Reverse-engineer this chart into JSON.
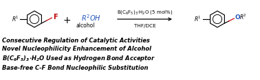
{
  "bg_color": "#ffffff",
  "fig_width": 3.78,
  "fig_height": 1.17,
  "dpi": 100,
  "reaction_line1": "Consecutive Regulation of Catalytic Activities",
  "reaction_line2": "Novel Nucleophilicity Enhancement of Alcohol",
  "reaction_line4": "Base-free C-F Bond Nucleophilic Substitution",
  "catalyst": "B(C$_6$F$_5$)$_3$·H$_2$O (5 mol%)",
  "solvent": "THF/DCE",
  "black": "#000000",
  "red": "#c00000",
  "blue": "#2255bb",
  "ring_r": 12,
  "ring_lw": 0.85,
  "bond_lw": 0.85
}
